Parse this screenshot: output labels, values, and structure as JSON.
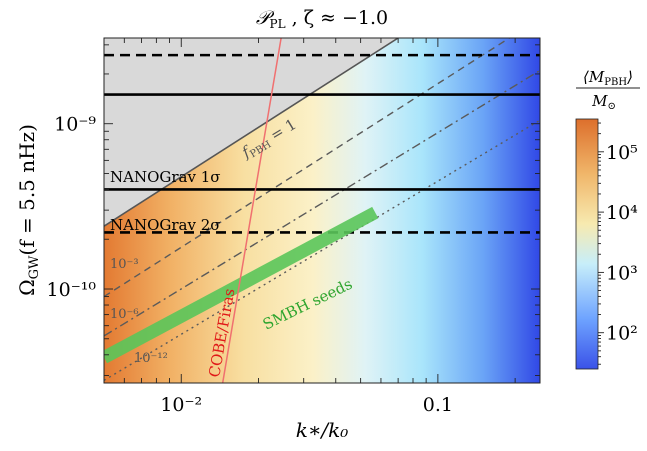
{
  "chart_data": {
    "type": "heatmap",
    "title": "𝒫_PL , ζ ≈ −1.0",
    "title_main": "𝒫",
    "title_sub": "PL",
    "title_rest": " , ζ ≈ −1.0",
    "xlabel": "k∗/k₀",
    "ylabel": "Ω_GW (f = 5.5 nHz)",
    "ylabel_main": "Ω",
    "ylabel_sub": "GW",
    "ylabel_rest": "(f = 5.5 nHz)",
    "x_scale": "log",
    "y_scale": "log",
    "xlim": [
      0.005,
      0.25
    ],
    "ylim": [
      2.7e-11,
      3.3e-09
    ],
    "x_ticks": [
      {
        "value": 0.01,
        "label": "10⁻²"
      },
      {
        "value": 0.1,
        "label": "0.1"
      }
    ],
    "y_ticks": [
      {
        "value": 1e-09,
        "label": "10⁻⁹"
      },
      {
        "value": 1e-10,
        "label": "10⁻¹⁰"
      }
    ],
    "colorbar": {
      "label_num": "⟨M",
      "label_num_sub": "PBH",
      "label_num_end": "⟩",
      "label_den": "M",
      "label_den_sub": "⊙",
      "scale": "log",
      "range": [
        25,
        350000
      ],
      "ticks": [
        {
          "value": 100,
          "label": "10²"
        },
        {
          "value": 1000,
          "label": "10³"
        },
        {
          "value": 10000,
          "label": "10⁴"
        },
        {
          "value": 100000,
          "label": "10⁵"
        }
      ],
      "colors": [
        "#3a52e8",
        "#6ea3ff",
        "#d9f5fb",
        "#f7e8a8",
        "#f0b66a",
        "#dd6f2c"
      ]
    },
    "horizontal_lines": [
      {
        "name": "NANOGrav 1σ",
        "style": "solid",
        "y": [
          4e-10,
          1.5e-09
        ]
      },
      {
        "name": "NANOGrav 2σ",
        "style": "dashed",
        "y": [
          2.2e-10,
          2.6e-09
        ]
      }
    ],
    "line_labels": {
      "nanograv_1sigma": "NANOGrav 1σ",
      "nanograv_2sigma": "NANOGrav 2σ"
    },
    "fpbh_contours": [
      {
        "name": "f_PBH = 1",
        "label_main": "f",
        "label_sub": "PBH",
        "label_rest": " = 1",
        "style": "solid",
        "points": [
          [
            0.005,
            2.4e-10
          ],
          [
            0.07,
            3.3e-09
          ]
        ]
      },
      {
        "name": "10⁻³",
        "label": "10⁻³",
        "style": "dashed",
        "points": [
          [
            0.005,
            9e-11
          ],
          [
            0.19,
            3.3e-09
          ]
        ]
      },
      {
        "name": "10⁻⁶",
        "label": "10⁻⁶",
        "style": "dashdot",
        "points": [
          [
            0.005,
            5.2e-11
          ],
          [
            0.25,
            2.1e-09
          ]
        ]
      },
      {
        "name": "10⁻¹²",
        "label": "10⁻¹²",
        "style": "dotted",
        "points": [
          [
            0.005,
            2.8e-11
          ],
          [
            0.25,
            1.05e-09
          ]
        ]
      }
    ],
    "cobe_firas": {
      "name": "COBE/Firas",
      "color": "#f07070",
      "points": [
        [
          0.0145,
          2.7e-11
        ],
        [
          0.0245,
          3.3e-09
        ]
      ]
    },
    "smbh_seeds": {
      "name": "SMBH seeds",
      "color": "#5ac55a",
      "points": [
        [
          0.005,
          3.85e-11
        ],
        [
          0.057,
          2.9e-10
        ]
      ]
    }
  }
}
